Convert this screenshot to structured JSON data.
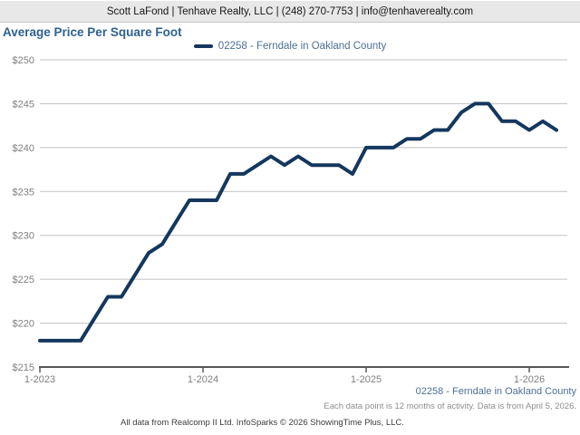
{
  "header": {
    "contact_text": "Scott LaFond | Tenhave Realty, LLC | (248) 270-7753 | info@tenhaverealty.com"
  },
  "page_title": "Average Price Per Square Foot",
  "legend": {
    "series_label": "02258 - Ferndale in Oakland County"
  },
  "footer": {
    "series_label": "02258 - Ferndale in Oakland County",
    "note": "Each data point is 12 months of activity. Data is from April 5, 2026.",
    "attribution": "All data from Realcomp II Ltd. InfoSparks © 2026 ShowingTime Plus, LLC."
  },
  "colors": {
    "series_line": "#14375e",
    "title_text": "#2e6190",
    "legend_text": "#4b7095",
    "axis_text": "#7f7f7f",
    "gridline": "#c1c1c1",
    "axis_line": "#58585a",
    "topbar_bg": "#e8e8e8"
  },
  "chart_data": {
    "type": "line",
    "title": "Average Price Per Square Foot",
    "x": [
      "1-2023",
      "2-2023",
      "3-2023",
      "4-2023",
      "5-2023",
      "6-2023",
      "7-2023",
      "8-2023",
      "9-2023",
      "10-2023",
      "11-2023",
      "12-2023",
      "1-2024",
      "2-2024",
      "3-2024",
      "4-2024",
      "5-2024",
      "6-2024",
      "7-2024",
      "8-2024",
      "9-2024",
      "10-2024",
      "11-2024",
      "12-2024",
      "1-2025",
      "2-2025",
      "3-2025",
      "4-2025",
      "5-2025",
      "6-2025",
      "7-2025",
      "8-2025",
      "9-2025",
      "10-2025",
      "11-2025",
      "12-2025",
      "1-2026",
      "2-2026",
      "3-2026"
    ],
    "series": [
      {
        "name": "02258 - Ferndale in Oakland County",
        "values": [
          218,
          218,
          218,
          218,
          220.5,
          223,
          223,
          225.5,
          228,
          229,
          231.5,
          234,
          234,
          234,
          237,
          237,
          238,
          239,
          238,
          239,
          238,
          238,
          238,
          237,
          240,
          240,
          240,
          241,
          241,
          242,
          242,
          244,
          245,
          245,
          243,
          243,
          242,
          243,
          242
        ]
      }
    ],
    "x_tick_labels": [
      "1-2023",
      "1-2024",
      "1-2025",
      "1-2026"
    ],
    "y_ticks": [
      215,
      220,
      225,
      230,
      235,
      240,
      245,
      250
    ],
    "y_prefix": "$",
    "ylim": [
      215,
      250
    ],
    "grid": true,
    "legend_position": "top"
  }
}
